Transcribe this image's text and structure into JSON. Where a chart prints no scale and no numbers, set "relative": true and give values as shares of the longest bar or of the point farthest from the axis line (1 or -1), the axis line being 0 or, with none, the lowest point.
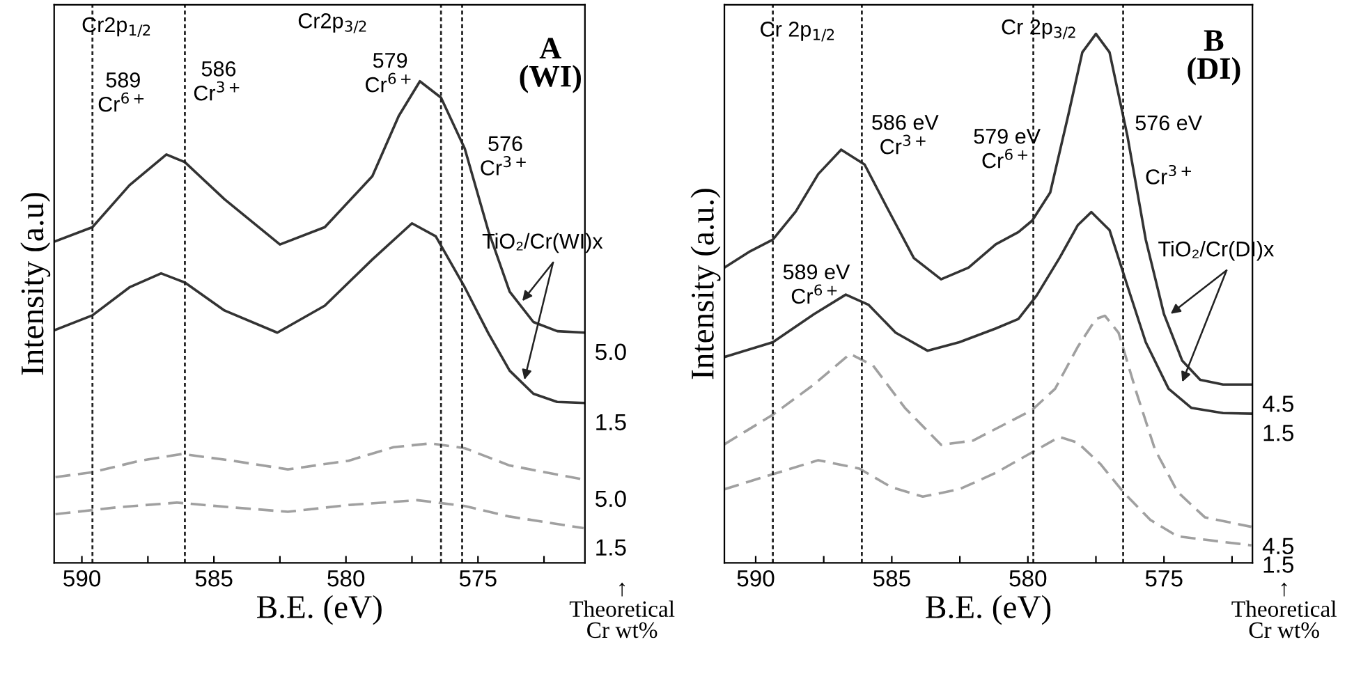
{
  "chart_data": [
    {
      "type": "line",
      "relative": true,
      "xlabel": "B.E. (eV)",
      "ylabel": "Intensity (a.u)",
      "xlim": [
        591.05,
        570.95
      ],
      "xticks": [
        590,
        {
          "value": 587.5,
          "label": null
        },
        585,
        {
          "value": 582.5,
          "label": null
        },
        580,
        {
          "value": 577.5,
          "label": null
        },
        575,
        {
          "value": 572.5,
          "label": null
        }
      ],
      "grid": false,
      "legend": false,
      "marker": "none",
      "series": [
        {
          "name": "5.0",
          "color": "#333333",
          "line_style": "solid",
          "x": [
            591.0,
            589.6,
            588.2,
            586.8,
            586.1,
            584.6,
            582.5,
            580.8,
            579.0,
            578.0,
            577.2,
            576.4,
            575.5,
            574.6,
            573.8,
            572.9,
            572.0,
            571.0
          ],
          "values": [
            0.668,
            0.697,
            0.784,
            0.848,
            0.832,
            0.755,
            0.661,
            0.697,
            0.803,
            0.928,
            1.0,
            0.966,
            0.86,
            0.688,
            0.563,
            0.5,
            0.481,
            0.478
          ]
        },
        {
          "name": "1.5",
          "color": "#333333",
          "line_style": "solid",
          "x": [
            591.0,
            589.6,
            588.2,
            587.0,
            586.1,
            584.6,
            582.6,
            580.8,
            579.0,
            577.5,
            576.6,
            575.5,
            574.6,
            573.8,
            572.9,
            572.0,
            571.0
          ],
          "values": [
            0.484,
            0.514,
            0.572,
            0.601,
            0.582,
            0.524,
            0.478,
            0.534,
            0.63,
            0.705,
            0.678,
            0.572,
            0.476,
            0.399,
            0.351,
            0.334,
            0.332
          ]
        },
        {
          "name": "5.0",
          "color": "#a0a0a0",
          "line_style": "dashed",
          "x": [
            591.0,
            589.6,
            587.8,
            586.2,
            584.3,
            582.2,
            579.9,
            578.2,
            576.8,
            575.5,
            573.8,
            571.0
          ],
          "values": [
            0.178,
            0.188,
            0.212,
            0.226,
            0.212,
            0.194,
            0.212,
            0.24,
            0.248,
            0.238,
            0.202,
            0.173
          ]
        },
        {
          "name": "1.5",
          "color": "#a0a0a0",
          "line_style": "dashed",
          "x": [
            591.0,
            588.7,
            586.4,
            584.3,
            582.2,
            579.9,
            577.3,
            575.5,
            573.8,
            571.0
          ],
          "values": [
            0.101,
            0.115,
            0.125,
            0.115,
            0.106,
            0.12,
            0.13,
            0.118,
            0.096,
            0.072
          ]
        }
      ],
      "ref_lines": [
        {
          "axis": "x",
          "value": 589.6,
          "color": "#222222",
          "line_style": "dotted"
        },
        {
          "axis": "x",
          "value": 586.1,
          "color": "#222222",
          "line_style": "dotted"
        },
        {
          "axis": "x",
          "value": 576.4,
          "color": "#222222",
          "line_style": "dotted"
        },
        {
          "axis": "x",
          "value": 575.6,
          "color": "#222222",
          "line_style": "dotted"
        }
      ],
      "annotations": [
        "Cr2p$_{1/2}$",
        "589\nCr$^{6+}$",
        "586\nCr$^{3+}$",
        "Cr2p$_{3/2}$",
        "579\nCr$^{6+}$",
        "576\nCr$^{3+}$",
        "A\n(WI)",
        "TiO₂/Cr(WI)x",
        "↑\nTheoretical\nCr wt%"
      ]
    },
    {
      "type": "line",
      "relative": true,
      "xlabel": "B.E. (eV)",
      "ylabel": "Intensity (a.u.)",
      "xlim": [
        591.15,
        571.75
      ],
      "xticks": [
        590,
        {
          "value": 587.5,
          "label": null
        },
        585,
        {
          "value": 582.5,
          "label": null
        },
        580,
        {
          "value": 577.5,
          "label": null
        },
        575,
        {
          "value": 572.5,
          "label": null
        }
      ],
      "grid": false,
      "legend": false,
      "marker": "none",
      "series": [
        {
          "name": "4.5",
          "color": "#333333",
          "line_style": "solid",
          "x": [
            591.15,
            590.2,
            589.37,
            588.53,
            587.7,
            586.86,
            586.0,
            585.19,
            584.19,
            583.19,
            582.18,
            581.18,
            580.35,
            579.84,
            579.18,
            578.5,
            578.0,
            577.5,
            577.0,
            576.34,
            575.67,
            575.0,
            574.33,
            573.67,
            572.83,
            571.79
          ],
          "values": [
            0.558,
            0.589,
            0.611,
            0.664,
            0.735,
            0.781,
            0.753,
            0.673,
            0.576,
            0.536,
            0.558,
            0.602,
            0.625,
            0.647,
            0.7,
            0.85,
            0.965,
            1.0,
            0.965,
            0.806,
            0.611,
            0.47,
            0.382,
            0.346,
            0.337,
            0.337
          ]
        },
        {
          "name": "1.5",
          "color": "#333333",
          "line_style": "solid",
          "x": [
            591.15,
            589.37,
            587.86,
            586.69,
            585.86,
            584.86,
            583.69,
            582.52,
            581.18,
            580.35,
            579.68,
            578.84,
            578.17,
            577.67,
            577.0,
            576.34,
            575.67,
            574.83,
            574.0,
            572.83,
            571.79
          ],
          "values": [
            0.389,
            0.417,
            0.47,
            0.507,
            0.488,
            0.435,
            0.401,
            0.417,
            0.443,
            0.461,
            0.505,
            0.576,
            0.638,
            0.663,
            0.629,
            0.523,
            0.417,
            0.329,
            0.293,
            0.283,
            0.282
          ]
        },
        {
          "name": "4.5",
          "color": "#a0a0a0",
          "line_style": "dashed",
          "x": [
            591.15,
            589.37,
            587.86,
            586.53,
            585.69,
            584.52,
            583.19,
            582.02,
            580.85,
            579.84,
            579.0,
            578.17,
            577.5,
            577.17,
            576.67,
            576.0,
            575.33,
            574.5,
            573.5,
            571.79
          ],
          "values": [
            0.224,
            0.28,
            0.337,
            0.395,
            0.373,
            0.293,
            0.223,
            0.231,
            0.262,
            0.289,
            0.329,
            0.408,
            0.461,
            0.467,
            0.435,
            0.32,
            0.214,
            0.134,
            0.086,
            0.068
          ]
        },
        {
          "name": "1.5",
          "color": "#a0a0a0",
          "line_style": "dashed",
          "x": [
            591.15,
            589.53,
            587.7,
            586.19,
            585.02,
            583.86,
            582.52,
            581.18,
            579.84,
            578.84,
            578.17,
            577.34,
            576.5,
            575.5,
            574.5,
            571.79
          ],
          "values": [
            0.139,
            0.165,
            0.194,
            0.178,
            0.143,
            0.125,
            0.139,
            0.17,
            0.209,
            0.238,
            0.227,
            0.187,
            0.134,
            0.081,
            0.05,
            0.033
          ]
        }
      ],
      "ref_lines": [
        {
          "axis": "x",
          "value": 589.37,
          "color": "#222222",
          "line_style": "dotted"
        },
        {
          "axis": "x",
          "value": 586.1,
          "color": "#222222",
          "line_style": "dotted"
        },
        {
          "axis": "x",
          "value": 579.8,
          "color": "#222222",
          "line_style": "dotted"
        },
        {
          "axis": "x",
          "value": 576.5,
          "color": "#222222",
          "line_style": "dotted"
        }
      ],
      "annotations": [
        "Cr 2p$_{1/2}$",
        "Cr 2p$_{3/2}$",
        "586 eV\nCr$^{3+}$",
        "579 eV\nCr$^{6+}$",
        "576 eV",
        "Cr$^{3+}$",
        "589 eV\nCr$^{6+}$",
        "B\n(DI)",
        "TiO₂/Cr(DI)x",
        "↑\nTheoretical\nCr wt%"
      ]
    }
  ]
}
